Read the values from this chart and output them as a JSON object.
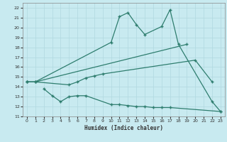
{
  "line1_x": [
    0,
    1,
    10,
    11,
    12,
    13,
    14,
    16,
    17,
    18,
    22,
    23
  ],
  "line1_y": [
    14.5,
    14.5,
    18.5,
    21.1,
    21.5,
    20.3,
    19.3,
    20.1,
    21.8,
    18.3,
    12.5,
    11.5
  ],
  "line2_x": [
    0,
    1,
    19
  ],
  "line2_y": [
    14.5,
    14.5,
    18.3
  ],
  "line3_x": [
    0,
    1,
    5,
    6,
    7,
    8,
    9,
    20,
    22
  ],
  "line3_y": [
    14.5,
    14.5,
    14.2,
    14.5,
    14.9,
    15.1,
    15.3,
    16.7,
    14.5
  ],
  "line4_x": [
    2,
    3,
    4,
    5,
    6,
    7,
    10,
    11,
    12,
    13,
    14,
    15,
    16,
    17,
    23
  ],
  "line4_y": [
    13.8,
    13.1,
    12.5,
    13.0,
    13.1,
    13.1,
    12.2,
    12.2,
    12.1,
    12.0,
    12.0,
    11.9,
    11.9,
    11.9,
    11.5
  ],
  "xlabel": "Humidex (Indice chaleur)",
  "color": "#2e7d6e",
  "bg_color": "#c8eaf0",
  "grid_color": "#b0d8e0",
  "ylim": [
    11,
    22.5
  ],
  "xlim": [
    -0.5,
    23.5
  ],
  "yticks": [
    11,
    12,
    13,
    14,
    15,
    16,
    17,
    18,
    19,
    20,
    21,
    22
  ],
  "xticks": [
    0,
    1,
    2,
    3,
    4,
    5,
    6,
    7,
    8,
    9,
    10,
    11,
    12,
    13,
    14,
    15,
    16,
    17,
    18,
    19,
    20,
    21,
    22,
    23
  ]
}
